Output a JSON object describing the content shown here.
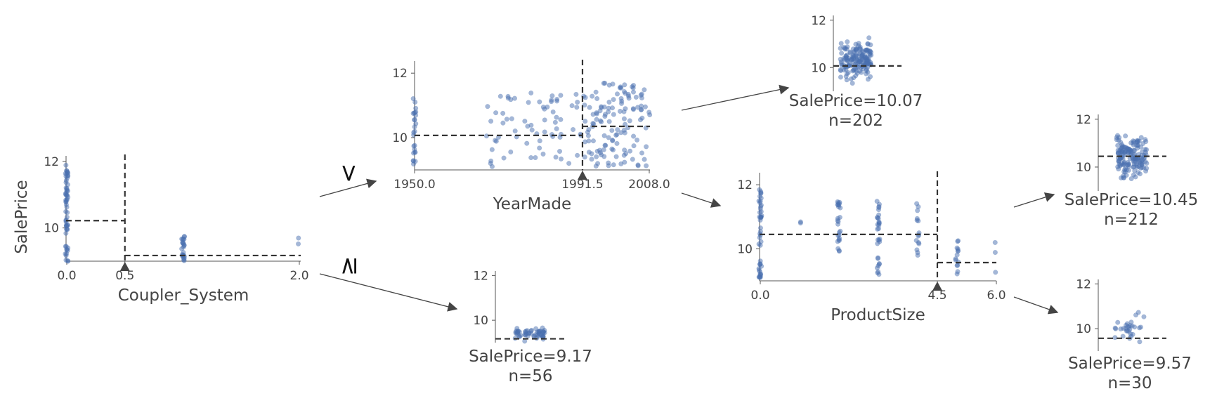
{
  "chart_data": {
    "type": "scatter",
    "title": "",
    "ylabel": "SalePrice",
    "nodes": [
      {
        "id": "root",
        "kind": "split",
        "feature": "Coupler_System",
        "split": 0.5,
        "xticks": [
          "0.0",
          "0.5",
          "2.0"
        ],
        "yticks": [
          "10",
          "12"
        ],
        "xlim": [
          0.0,
          2.0
        ],
        "ylim": [
          9.0,
          12.0
        ],
        "left_mean": 10.22,
        "right_mean": 9.17,
        "clusters": [
          {
            "x": 0.0,
            "y_min": 9.0,
            "y_max": 11.9,
            "count": 60
          },
          {
            "x": 1.0,
            "y_min": 9.0,
            "y_max": 9.75,
            "count": 25
          },
          {
            "x": 2.0,
            "y_min": 9.1,
            "y_max": 9.75,
            "count": 2
          }
        ]
      },
      {
        "id": "yearmade",
        "kind": "split",
        "feature": "YearMade",
        "split": 1991.5,
        "xticks": [
          "1950.0",
          "1991.5",
          "2008.0"
        ],
        "yticks": [
          "10",
          "12"
        ],
        "xlim": [
          1950.0,
          2008.0
        ],
        "ylim": [
          9.0,
          12.2
        ],
        "left_mean": 10.07,
        "right_mean": 10.35,
        "clusters": [
          {
            "x": 1950.0,
            "y_min": 9.1,
            "y_max": 11.3,
            "count": 25
          },
          {
            "x_min": 1968,
            "x_max": 1991,
            "y_min": 9.1,
            "y_max": 11.4,
            "count": 70
          },
          {
            "x_min": 1992,
            "x_max": 2008,
            "y_min": 9.1,
            "y_max": 11.7,
            "count": 130
          }
        ]
      },
      {
        "id": "productsize",
        "kind": "split",
        "feature": "ProductSize",
        "split": 4.5,
        "xticks": [
          "0.0",
          "4.5",
          "6.0"
        ],
        "yticks": [
          "10",
          "12"
        ],
        "xlim": [
          0.0,
          6.0
        ],
        "ylim": [
          9.0,
          12.2
        ],
        "left_mean": 10.45,
        "right_mean": 9.57,
        "clusters": [
          {
            "x": 0.0,
            "y_min": 9.1,
            "y_max": 11.9,
            "count": 45
          },
          {
            "x": 1.0,
            "y_min": 10.8,
            "y_max": 10.9,
            "count": 2
          },
          {
            "x": 2.0,
            "y_min": 9.8,
            "y_max": 11.6,
            "count": 25
          },
          {
            "x": 3.0,
            "y_min": 9.2,
            "y_max": 11.6,
            "count": 30
          },
          {
            "x": 4.0,
            "y_min": 9.8,
            "y_max": 11.5,
            "count": 15
          },
          {
            "x": 5.0,
            "y_min": 9.1,
            "y_max": 10.3,
            "count": 14
          },
          {
            "x": 6.0,
            "y_min": 9.2,
            "y_max": 10.7,
            "count": 3
          }
        ]
      },
      {
        "id": "leaf_yearmade_lt",
        "kind": "leaf",
        "label": "SalePrice=10.07",
        "n_label": "n=202",
        "mean": 10.07,
        "yticks": [
          "10",
          "12"
        ],
        "ylim": [
          9.0,
          12.2
        ],
        "y_min": 9.1,
        "y_max": 11.5
      },
      {
        "id": "leaf_root_ge",
        "kind": "leaf",
        "label": "SalePrice=9.17",
        "n_label": "n=56",
        "mean": 9.17,
        "yticks": [
          "10",
          "12"
        ],
        "ylim": [
          9.0,
          12.2
        ],
        "y_min": 9.0,
        "y_max": 9.8
      },
      {
        "id": "leaf_size_lt",
        "kind": "leaf",
        "label": "SalePrice=10.45",
        "n_label": "n=212",
        "mean": 10.45,
        "yticks": [
          "10",
          "12"
        ],
        "ylim": [
          9.0,
          12.2
        ],
        "y_min": 9.2,
        "y_max": 11.7
      },
      {
        "id": "leaf_size_ge",
        "kind": "leaf",
        "label": "SalePrice=9.57",
        "n_label": "n=30",
        "mean": 9.57,
        "yticks": [
          "10",
          "12"
        ],
        "ylim": [
          9.0,
          12.2
        ],
        "y_min": 9.1,
        "y_max": 10.8
      }
    ],
    "edges": [
      {
        "from": "root",
        "to": "yearmade",
        "label": "<"
      },
      {
        "from": "root",
        "to": "leaf_root_ge",
        "label": "≥"
      },
      {
        "from": "yearmade",
        "to": "leaf_yearmade_lt",
        "label": ""
      },
      {
        "from": "yearmade",
        "to": "productsize",
        "label": ""
      },
      {
        "from": "productsize",
        "to": "leaf_size_lt",
        "label": ""
      },
      {
        "from": "productsize",
        "to": "leaf_size_ge",
        "label": ""
      }
    ]
  }
}
